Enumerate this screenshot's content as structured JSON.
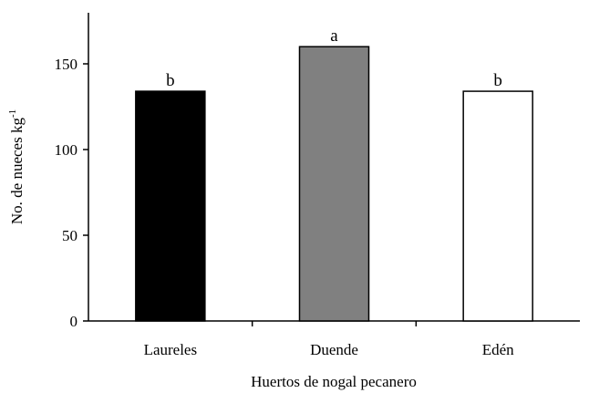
{
  "chart_data": {
    "type": "bar",
    "title": "",
    "xlabel": "Huertos de nogal pecanero",
    "ylabel": "No. de nueces kg",
    "ylabel_superscript": "-1",
    "categories": [
      "Laureles",
      "Duende",
      "Edén"
    ],
    "values": [
      134,
      160,
      134
    ],
    "bar_labels": [
      "b",
      "a",
      "b"
    ],
    "bar_colors": [
      "#000000",
      "#808080",
      "#ffffff"
    ],
    "yticks": [
      0,
      50,
      100,
      150
    ],
    "ylim": [
      0,
      180
    ],
    "grid": false,
    "legend": "none"
  }
}
